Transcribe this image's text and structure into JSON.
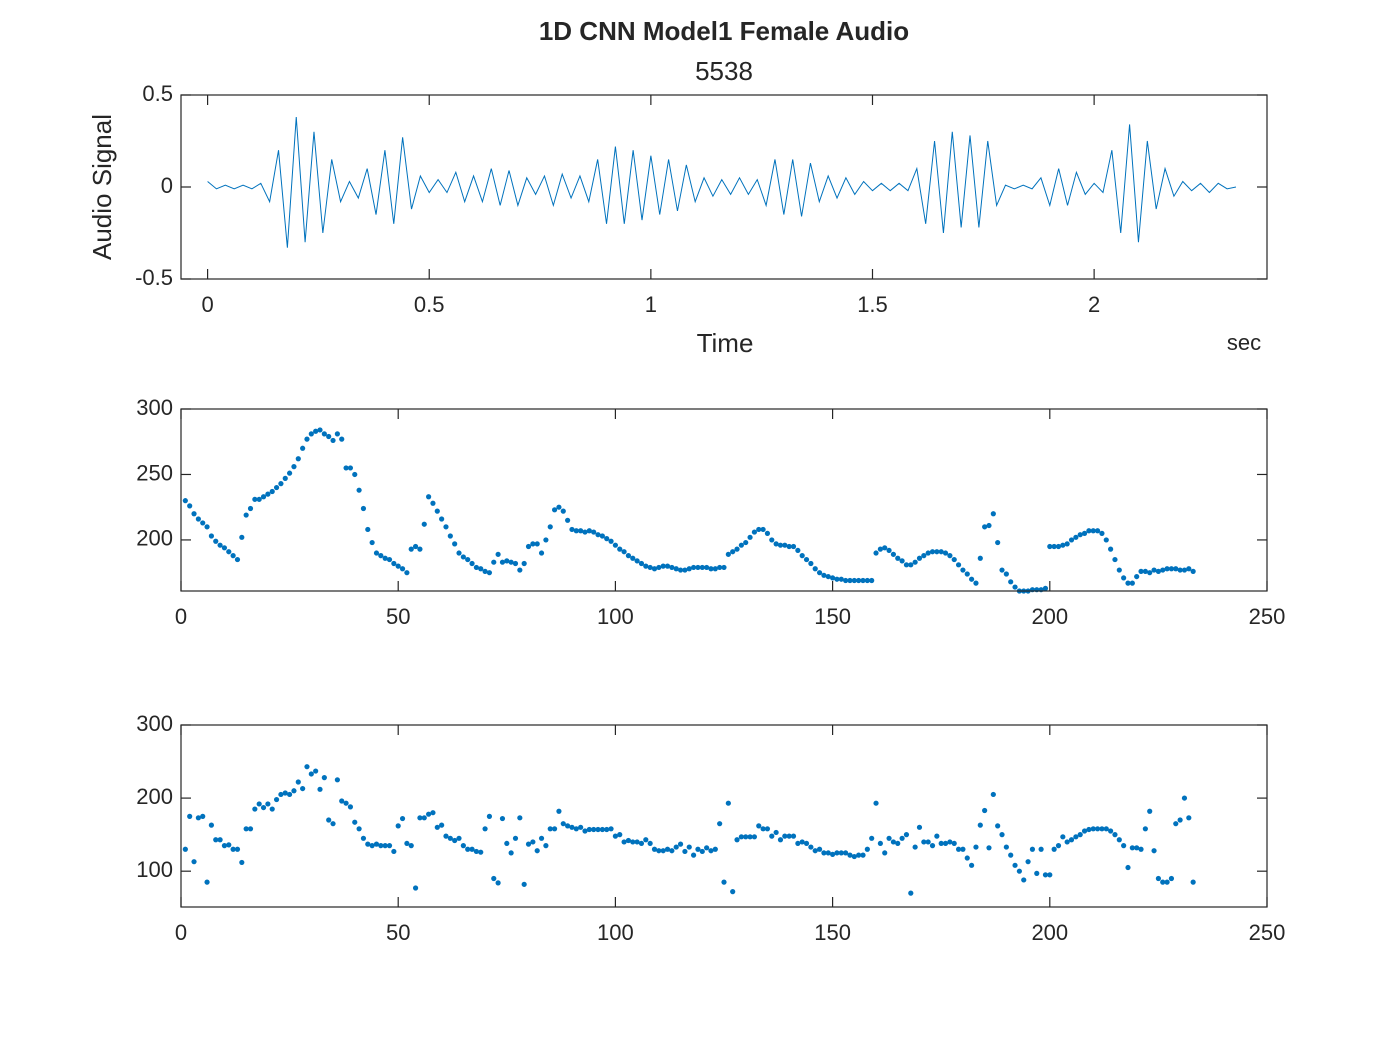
{
  "chart_data": [
    {
      "type": "line",
      "title": "1D CNN Model1 Female Audio",
      "subtitle": "5538",
      "xlabel": "Time",
      "ylabel": "Audio Signal",
      "annotation": "sec",
      "color": "#0072bd",
      "xlim": [
        -0.06,
        2.39
      ],
      "ylim": [
        -0.5,
        0.5
      ],
      "xticks": [
        0,
        0.5,
        1,
        1.5,
        2
      ],
      "yticks": [
        -0.5,
        0,
        0.5
      ],
      "x": [
        0,
        0.02,
        0.04,
        0.06,
        0.08,
        0.1,
        0.12,
        0.14,
        0.16,
        0.18,
        0.2,
        0.22,
        0.24,
        0.26,
        0.28,
        0.3,
        0.32,
        0.34,
        0.36,
        0.38,
        0.4,
        0.42,
        0.44,
        0.46,
        0.48,
        0.5,
        0.52,
        0.54,
        0.56,
        0.58,
        0.6,
        0.62,
        0.64,
        0.66,
        0.68,
        0.7,
        0.72,
        0.74,
        0.76,
        0.78,
        0.8,
        0.82,
        0.84,
        0.86,
        0.88,
        0.9,
        0.92,
        0.94,
        0.96,
        0.98,
        1,
        1.02,
        1.04,
        1.06,
        1.08,
        1.1,
        1.12,
        1.14,
        1.16,
        1.18,
        1.2,
        1.22,
        1.24,
        1.26,
        1.28,
        1.3,
        1.32,
        1.34,
        1.36,
        1.38,
        1.4,
        1.42,
        1.44,
        1.46,
        1.48,
        1.5,
        1.52,
        1.54,
        1.56,
        1.58,
        1.6,
        1.62,
        1.64,
        1.66,
        1.68,
        1.7,
        1.72,
        1.74,
        1.76,
        1.78,
        1.8,
        1.82,
        1.84,
        1.86,
        1.88,
        1.9,
        1.92,
        1.94,
        1.96,
        1.98,
        2,
        2.02,
        2.04,
        2.06,
        2.08,
        2.1,
        2.12,
        2.14,
        2.16,
        2.18,
        2.2,
        2.22,
        2.24,
        2.26,
        2.28,
        2.3,
        2.32
      ],
      "values": [
        0.03,
        -0.01,
        0.01,
        -0.01,
        0.01,
        -0.01,
        0.02,
        -0.08,
        0.2,
        -0.33,
        0.38,
        -0.3,
        0.3,
        -0.25,
        0.15,
        -0.08,
        0.03,
        -0.06,
        0.1,
        -0.15,
        0.2,
        -0.2,
        0.27,
        -0.12,
        0.06,
        -0.03,
        0.04,
        -0.03,
        0.08,
        -0.08,
        0.06,
        -0.08,
        0.1,
        -0.1,
        0.09,
        -0.1,
        0.05,
        -0.04,
        0.06,
        -0.1,
        0.07,
        -0.06,
        0.06,
        -0.08,
        0.15,
        -0.2,
        0.22,
        -0.2,
        0.2,
        -0.18,
        0.17,
        -0.15,
        0.15,
        -0.13,
        0.12,
        -0.08,
        0.05,
        -0.05,
        0.04,
        -0.04,
        0.05,
        -0.04,
        0.04,
        -0.1,
        0.15,
        -0.15,
        0.15,
        -0.16,
        0.13,
        -0.08,
        0.06,
        -0.06,
        0.05,
        -0.04,
        0.03,
        -0.02,
        0.02,
        -0.02,
        0.02,
        -0.02,
        0.1,
        -0.2,
        0.25,
        -0.25,
        0.3,
        -0.22,
        0.28,
        -0.22,
        0.25,
        -0.1,
        0.01,
        -0.01,
        0.01,
        -0.01,
        0.05,
        -0.1,
        0.1,
        -0.1,
        0.08,
        -0.04,
        0.02,
        -0.03,
        0.2,
        -0.25,
        0.34,
        -0.3,
        0.25,
        -0.12,
        0.1,
        -0.05,
        0.03,
        -0.02,
        0.02,
        -0.03,
        0.02,
        -0.01,
        0
      ]
    },
    {
      "type": "scatter",
      "color": "#0072bd",
      "xlim": [
        0,
        250
      ],
      "ylim": [
        161,
        300
      ],
      "xticks": [
        0,
        50,
        100,
        150,
        200,
        250
      ],
      "yticks": [
        200,
        250,
        300
      ],
      "x": [
        1,
        2,
        3,
        4,
        5,
        6,
        7,
        8,
        9,
        10,
        11,
        12,
        13,
        14,
        15,
        16,
        17,
        18,
        19,
        20,
        21,
        22,
        23,
        24,
        25,
        26,
        27,
        28,
        29,
        30,
        31,
        32,
        33,
        34,
        35,
        36,
        37,
        38,
        39,
        40,
        41,
        42,
        43,
        44,
        45,
        46,
        47,
        48,
        49,
        50,
        51,
        52,
        53,
        54,
        55,
        56,
        57,
        58,
        59,
        60,
        61,
        62,
        63,
        64,
        65,
        66,
        67,
        68,
        69,
        70,
        71,
        72,
        73,
        74,
        75,
        76,
        77,
        78,
        79,
        80,
        81,
        82,
        83,
        84,
        85,
        86,
        87,
        88,
        89,
        90,
        91,
        92,
        93,
        94,
        95,
        96,
        97,
        98,
        99,
        100,
        101,
        102,
        103,
        104,
        105,
        106,
        107,
        108,
        109,
        110,
        111,
        112,
        113,
        114,
        115,
        116,
        117,
        118,
        119,
        120,
        121,
        122,
        123,
        124,
        125,
        126,
        127,
        128,
        129,
        130,
        131,
        132,
        133,
        134,
        135,
        136,
        137,
        138,
        139,
        140,
        141,
        142,
        143,
        144,
        145,
        146,
        147,
        148,
        149,
        150,
        151,
        152,
        153,
        154,
        155,
        156,
        157,
        158,
        159,
        160,
        161,
        162,
        163,
        164,
        165,
        166,
        167,
        168,
        169,
        170,
        171,
        172,
        173,
        174,
        175,
        176,
        177,
        178,
        179,
        180,
        181,
        182,
        183,
        184,
        185,
        186,
        187,
        188,
        189,
        190,
        191,
        192,
        193,
        194,
        195,
        196,
        197,
        198,
        199,
        200,
        201,
        202,
        203,
        204,
        205,
        206,
        207,
        208,
        209,
        210,
        211,
        212,
        213,
        214,
        215,
        216,
        217,
        218,
        219,
        220,
        221,
        222,
        223,
        224,
        225,
        226,
        227,
        228,
        229,
        230,
        231,
        232,
        233
      ],
      "values": [
        230,
        226,
        220,
        216,
        213,
        210,
        203,
        199,
        196,
        194,
        191,
        188,
        185,
        202,
        219,
        224,
        231,
        231,
        233,
        235,
        237,
        240,
        243,
        247,
        251,
        256,
        262,
        270,
        277,
        281,
        283,
        284,
        281,
        279,
        276,
        281,
        277,
        255,
        255,
        250,
        238,
        224,
        208,
        198,
        190,
        188,
        186,
        185,
        182,
        180,
        178,
        175,
        193,
        195,
        193,
        212,
        233,
        228,
        222,
        216,
        210,
        203,
        197,
        190,
        187,
        185,
        182,
        179,
        178,
        176,
        175,
        183,
        189,
        183,
        184,
        183,
        182,
        177,
        182,
        195,
        197,
        197,
        190,
        200,
        210,
        223,
        225,
        222,
        215,
        208,
        207,
        207,
        206,
        207,
        206,
        204,
        203,
        201,
        199,
        196,
        193,
        191,
        188,
        186,
        184,
        182,
        180,
        179,
        178,
        179,
        180,
        180,
        179,
        178,
        177,
        177,
        178,
        179,
        179,
        179,
        179,
        178,
        178,
        179,
        179,
        189,
        191,
        193,
        196,
        198,
        202,
        206,
        208,
        208,
        205,
        200,
        197,
        196,
        196,
        195,
        195,
        192,
        188,
        185,
        182,
        178,
        175,
        173,
        172,
        171,
        170,
        170,
        169,
        169,
        169,
        169,
        169,
        169,
        169,
        190,
        193,
        194,
        192,
        189,
        186,
        184,
        181,
        181,
        183,
        186,
        188,
        190,
        191,
        191,
        191,
        190,
        188,
        185,
        181,
        177,
        174,
        170,
        167,
        186,
        210,
        211,
        220,
        198,
        177,
        174,
        168,
        164,
        161,
        161,
        161,
        162,
        162,
        162,
        163,
        195,
        195,
        195,
        196,
        197,
        200,
        202,
        204,
        205,
        207,
        207,
        207,
        205,
        200,
        193,
        185,
        177,
        171,
        167,
        167,
        172,
        176,
        176,
        175,
        177,
        176,
        177,
        178,
        178,
        178,
        177,
        177,
        178,
        176
      ]
    },
    {
      "type": "scatter",
      "color": "#0072bd",
      "xlim": [
        0,
        250
      ],
      "ylim": [
        51,
        300
      ],
      "xticks": [
        0,
        50,
        100,
        150,
        200,
        250
      ],
      "yticks": [
        100,
        200,
        300
      ],
      "x": [
        1,
        2,
        3,
        4,
        5,
        6,
        7,
        8,
        9,
        10,
        11,
        12,
        13,
        14,
        15,
        16,
        17,
        18,
        19,
        20,
        21,
        22,
        23,
        24,
        25,
        26,
        27,
        28,
        29,
        30,
        31,
        32,
        33,
        34,
        35,
        36,
        37,
        38,
        39,
        40,
        41,
        42,
        43,
        44,
        45,
        46,
        47,
        48,
        49,
        50,
        51,
        52,
        53,
        54,
        55,
        56,
        57,
        58,
        59,
        60,
        61,
        62,
        63,
        64,
        65,
        66,
        67,
        68,
        69,
        70,
        71,
        72,
        73,
        74,
        75,
        76,
        77,
        78,
        79,
        80,
        81,
        82,
        83,
        84,
        85,
        86,
        87,
        88,
        89,
        90,
        91,
        92,
        93,
        94,
        95,
        96,
        97,
        98,
        99,
        100,
        101,
        102,
        103,
        104,
        105,
        106,
        107,
        108,
        109,
        110,
        111,
        112,
        113,
        114,
        115,
        116,
        117,
        118,
        119,
        120,
        121,
        122,
        123,
        124,
        125,
        126,
        127,
        128,
        129,
        130,
        131,
        132,
        133,
        134,
        135,
        136,
        137,
        138,
        139,
        140,
        141,
        142,
        143,
        144,
        145,
        146,
        147,
        148,
        149,
        150,
        151,
        152,
        153,
        154,
        155,
        156,
        157,
        158,
        159,
        160,
        161,
        162,
        163,
        164,
        165,
        166,
        167,
        168,
        169,
        170,
        171,
        172,
        173,
        174,
        175,
        176,
        177,
        178,
        179,
        180,
        181,
        182,
        183,
        184,
        185,
        186,
        187,
        188,
        189,
        190,
        191,
        192,
        193,
        194,
        195,
        196,
        197,
        198,
        199,
        200,
        201,
        202,
        203,
        204,
        205,
        206,
        207,
        208,
        209,
        210,
        211,
        212,
        213,
        214,
        215,
        216,
        217,
        218,
        219,
        220,
        221,
        222,
        223,
        224,
        225,
        226,
        227,
        228,
        229,
        230,
        231,
        232,
        233
      ],
      "values": [
        130,
        175,
        113,
        173,
        175,
        85,
        163,
        143,
        143,
        135,
        136,
        130,
        130,
        112,
        158,
        158,
        185,
        192,
        187,
        192,
        185,
        198,
        205,
        207,
        205,
        210,
        222,
        213,
        243,
        233,
        237,
        212,
        228,
        170,
        165,
        225,
        196,
        193,
        188,
        167,
        158,
        145,
        137,
        135,
        137,
        135,
        135,
        135,
        127,
        162,
        172,
        138,
        135,
        77,
        173,
        173,
        178,
        180,
        160,
        163,
        148,
        145,
        142,
        145,
        135,
        130,
        130,
        127,
        126,
        158,
        175,
        90,
        84,
        172,
        138,
        125,
        145,
        173,
        82,
        137,
        140,
        128,
        145,
        135,
        158,
        158,
        182,
        165,
        162,
        160,
        158,
        160,
        155,
        157,
        157,
        157,
        157,
        157,
        158,
        148,
        150,
        140,
        142,
        140,
        140,
        138,
        143,
        138,
        130,
        128,
        128,
        130,
        128,
        133,
        137,
        127,
        133,
        122,
        130,
        127,
        132,
        128,
        130,
        165,
        85,
        193,
        72,
        143,
        147,
        147,
        147,
        147,
        162,
        158,
        158,
        148,
        153,
        143,
        148,
        148,
        148,
        138,
        140,
        138,
        133,
        128,
        130,
        125,
        125,
        123,
        125,
        125,
        125,
        122,
        120,
        122,
        122,
        130,
        145,
        193,
        138,
        125,
        145,
        140,
        138,
        145,
        150,
        70,
        133,
        160,
        140,
        140,
        135,
        148,
        138,
        138,
        140,
        138,
        130,
        130,
        118,
        108,
        133,
        163,
        183,
        132,
        205,
        162,
        150,
        133,
        122,
        108,
        100,
        88,
        113,
        130,
        97,
        130,
        95,
        95,
        130,
        135,
        147,
        140,
        143,
        147,
        150,
        155,
        157,
        158,
        158,
        158,
        158,
        155,
        150,
        143,
        135,
        105,
        132,
        132,
        130,
        158,
        182,
        128,
        90,
        85,
        85,
        90,
        165,
        170,
        200,
        173,
        85
      ]
    }
  ]
}
